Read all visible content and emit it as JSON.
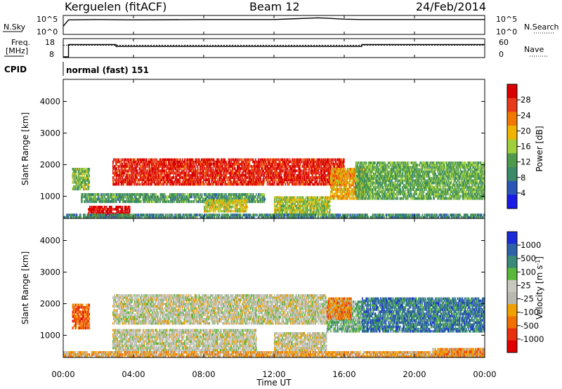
{
  "header": {
    "station": "Kerguelen (fitACF)",
    "beam": "Beam 12",
    "date": "24/Feb/2014"
  },
  "info_panels": {
    "nsky_label": "N.Sky",
    "nsky_ticks": [
      "10^5",
      "10^0"
    ],
    "nsearch_label": "N.Search",
    "nsearch_ticks": [
      "10^5",
      "10^0"
    ],
    "freq_label": "Freq.",
    "freq_unit": "[MHz]",
    "freq_ticks": [
      "18",
      "8"
    ],
    "nave_label": "Nave",
    "nave_ticks": [
      "60",
      "0"
    ],
    "cpid_label": "CPID",
    "cpid_text": "normal (fast) 151"
  },
  "x_axis": {
    "label": "Time UT",
    "ticks": [
      "00:00",
      "04:00",
      "08:00",
      "12:00",
      "16:00",
      "20:00",
      "00:00"
    ]
  },
  "colors": {
    "power": [
      "#1a1ae6",
      "#2a56b8",
      "#3b8a6a",
      "#4e9a4a",
      "#9fcf3a",
      "#f0b400",
      "#f07800",
      "#e83a1a",
      "#d80000"
    ],
    "velocity": [
      "#1a2ad8",
      "#2e62a8",
      "#3a8a7a",
      "#5ab83a",
      "#c8c8c0",
      "#b8b8b0",
      "#f0a000",
      "#f07000",
      "#e83010",
      "#e00000"
    ]
  },
  "chart_data": [
    {
      "type": "line",
      "panel": "N.Sky / N.Search",
      "x_unit": "hours UT",
      "x": [
        0,
        0.3,
        2,
        4,
        8,
        12,
        13,
        14,
        14.5,
        15,
        16,
        17,
        20,
        24
      ],
      "series": [
        {
          "name": "N.Sky",
          "values": [
            2.2,
            4.1,
            4.2,
            4.1,
            4.2,
            4.2,
            4.4,
            4.6,
            4.7,
            4.6,
            4.3,
            4.2,
            4.2,
            4.2
          ]
        }
      ],
      "ylim": [
        0,
        5
      ],
      "yscale": "log"
    },
    {
      "type": "line",
      "panel": "Freq. / Nave",
      "x_unit": "hours UT",
      "series": [
        {
          "name": "Freq.",
          "x": [
            0,
            0.3,
            0.3,
            3,
            3,
            17,
            17,
            24
          ],
          "values": [
            8,
            8,
            15,
            15,
            14,
            14,
            15,
            15
          ]
        },
        {
          "name": "Nave",
          "x": [
            0,
            24
          ],
          "values": [
            40,
            40
          ]
        }
      ],
      "ylim_freq": [
        8,
        18
      ],
      "ylim_nave": [
        0,
        60
      ]
    },
    {
      "type": "heatmap",
      "panel": "power",
      "title": "",
      "xlabel": "Time UT",
      "ylabel": "Slant Range [km]",
      "xlim_hours": [
        0,
        24
      ],
      "ylim": [
        300,
        4700
      ],
      "yticks": [
        "1000",
        "2000",
        "3000",
        "4000"
      ],
      "colorbar_label": "Power [dB]",
      "colorbar_ticks": [
        "4",
        "8",
        "12",
        "16",
        "20",
        "24",
        "28"
      ],
      "regions": [
        {
          "t0": 0.5,
          "t1": 1.5,
          "r0": 1200,
          "r1": 1900,
          "level": 0.45
        },
        {
          "t0": 2.8,
          "t1": 16.0,
          "r0": 1350,
          "r1": 2200,
          "level": 0.9
        },
        {
          "t0": 1.4,
          "t1": 3.8,
          "r0": 350,
          "r1": 700,
          "level": 1.0
        },
        {
          "t0": 1.0,
          "t1": 11.5,
          "r0": 800,
          "r1": 1100,
          "level": 0.35
        },
        {
          "t0": 8.0,
          "t1": 10.5,
          "r0": 500,
          "r1": 900,
          "level": 0.55
        },
        {
          "t0": 12.0,
          "t1": 15.2,
          "r0": 400,
          "r1": 1000,
          "level": 0.5
        },
        {
          "t0": 15.2,
          "t1": 17.2,
          "r0": 900,
          "r1": 1900,
          "level": 0.65
        },
        {
          "t0": 16.6,
          "t1": 24.0,
          "r0": 900,
          "r1": 2100,
          "level": 0.4
        },
        {
          "t0": 0.0,
          "t1": 24.0,
          "r0": 300,
          "r1": 450,
          "level": 0.3
        }
      ]
    },
    {
      "type": "heatmap",
      "panel": "velocity",
      "title": "",
      "xlabel": "Time UT",
      "ylabel": "Slant Range [km]",
      "xlim_hours": [
        0,
        24
      ],
      "ylim": [
        300,
        4700
      ],
      "yticks": [
        "1000",
        "2000",
        "3000",
        "4000"
      ],
      "colorbar_label": "Velocity [m s",
      "colorbar_ticks": [
        "1000",
        "500",
        "100",
        "25",
        "-25",
        "-100",
        "-500",
        "-1000"
      ],
      "regions": [
        {
          "t0": 0.5,
          "t1": 1.5,
          "r0": 1200,
          "r1": 2000,
          "level": 0.8
        },
        {
          "t0": 2.8,
          "t1": 15.0,
          "r0": 1350,
          "r1": 2300,
          "level": 0.5
        },
        {
          "t0": 2.8,
          "t1": 11.0,
          "r0": 500,
          "r1": 1200,
          "level": 0.5
        },
        {
          "t0": 12.0,
          "t1": 15.0,
          "r0": 500,
          "r1": 1100,
          "level": 0.52
        },
        {
          "t0": 15.0,
          "t1": 17.0,
          "r0": 1100,
          "r1": 2100,
          "level": 0.35
        },
        {
          "t0": 15.0,
          "t1": 16.4,
          "r0": 1500,
          "r1": 2200,
          "level": 0.7
        },
        {
          "t0": 17.0,
          "t1": 24.0,
          "r0": 1100,
          "r1": 2200,
          "level": 0.2
        },
        {
          "t0": 0.0,
          "t1": 24.0,
          "r0": 300,
          "r1": 500,
          "level": 0.65
        },
        {
          "t0": 21.0,
          "t1": 24.0,
          "r0": 300,
          "r1": 600,
          "level": 0.7
        }
      ]
    }
  ]
}
